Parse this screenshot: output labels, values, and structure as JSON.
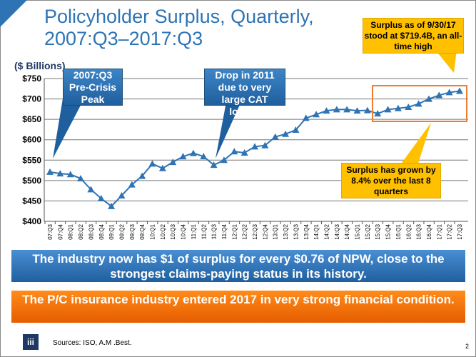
{
  "title": "Policyholder Surplus, Quarterly, 2007:Q3–2017:Q3",
  "callouts": {
    "peak": "2007:Q3 Pre-Crisis Peak",
    "drop": "Drop in 2011 due to very large CAT losses",
    "latest": "Surplus as of 9/30/17 stood at $719.4B, an all-time high",
    "growth": "Surplus has grown by 8.4% over the last 8 quarters"
  },
  "banners": {
    "blue": "The industry now has $1 of surplus for every $0.76 of NPW, close to the strongest claims-paying status in its history.",
    "orange": "The P/C insurance industry entered 2017 in very strong financial condition."
  },
  "footer": {
    "source": "Sources: ISO, A.M .Best.",
    "page": "2",
    "logo": "iii"
  },
  "colors": {
    "line": "#2e74b5",
    "callout": "#ffc000",
    "highlight_box": "#ed7d31",
    "banner_blue": "#2e74b5",
    "banner_orange": "#f26b00"
  },
  "chart_data": {
    "type": "line",
    "ylabel": "($ Billions)",
    "ylim": [
      400,
      750
    ],
    "yticks": [
      "$400",
      "$450",
      "$500",
      "$550",
      "$600",
      "$650",
      "$700",
      "$750"
    ],
    "grid": true,
    "marker": "triangle",
    "categories": [
      "07:Q3",
      "07:Q4",
      "08:Q1",
      "08:Q2",
      "08:Q3",
      "08:Q4",
      "09:Q1",
      "09:Q2",
      "09:Q3",
      "09:Q4",
      "10:Q1",
      "10:Q2",
      "10:Q3",
      "10:Q4",
      "11:Q1",
      "11:Q2",
      "11:Q3",
      "11:Q4",
      "12:Q1",
      "12:Q2",
      "12:Q3",
      "12:Q4",
      "13:Q1",
      "13:Q2",
      "13:Q3",
      "13:Q4",
      "14:Q1",
      "14:Q2",
      "14:Q3",
      "14:Q4",
      "15:Q1",
      "15:Q2",
      "15:Q3",
      "15:Q4",
      "16:Q1",
      "16:Q2",
      "16:Q3",
      "16:Q4",
      "17:Q1",
      "17:Q2",
      "17:Q3"
    ],
    "values": [
      521,
      517,
      515,
      505,
      478,
      456,
      437,
      463,
      490,
      511,
      541,
      530,
      545,
      559,
      567,
      559,
      538,
      550,
      571,
      568,
      583,
      586,
      607,
      614,
      624,
      653,
      662,
      671,
      674,
      674,
      671,
      672,
      664,
      674,
      677,
      680,
      688,
      700,
      709,
      716,
      719.4
    ]
  }
}
